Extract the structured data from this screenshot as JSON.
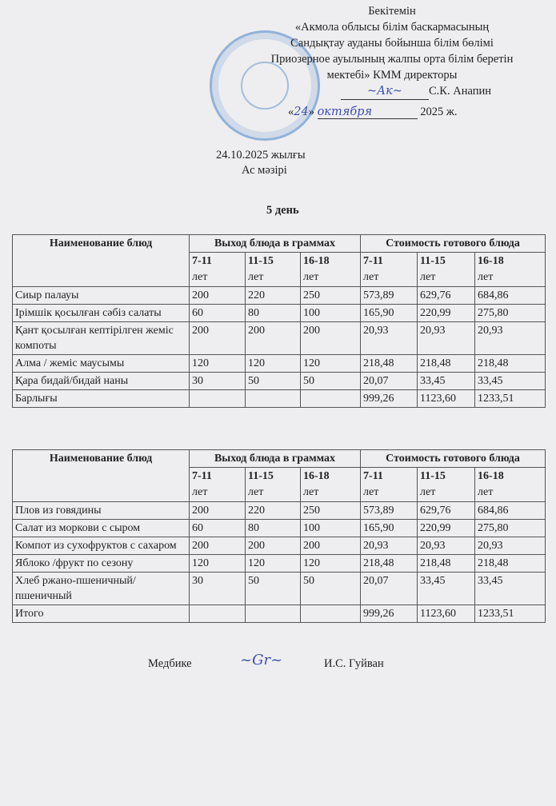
{
  "approval": {
    "lines": [
      "Бекітемін",
      "«Акмола облысы білім баскармасының",
      "Сандықтау ауданы бойынша білім бөлімі",
      "Приозерное ауылының жалпы орта білім беретін",
      "мектебі»  КММ директоры"
    ],
    "director_name": "С.К. Анапин",
    "date_day": "24",
    "date_month": "октября",
    "date_year": "2025 ж."
  },
  "date_title": "24.10.2025 жылғы",
  "menu_title": "Ас мәзірі",
  "day_title": "5 день",
  "headers": {
    "name": "Наименование блюд",
    "yield": "Выход блюда в граммах",
    "cost": "Стоимость готового блюда",
    "ages": [
      "7-11",
      "11-15",
      "16-18",
      "7-11",
      "11-15",
      "16-18"
    ],
    "unit": "лет"
  },
  "table_kz": [
    {
      "name": "Сиыр палауы",
      "values": [
        "200",
        "220",
        "250",
        "573,89",
        "629,76",
        "684,86"
      ]
    },
    {
      "name": "Ірімшік қосылған сәбіз салаты",
      "values": [
        "60",
        "80",
        "100",
        "165,90",
        "220,99",
        "275,80"
      ]
    },
    {
      "name": "Қант қосылған кептірілген жеміс компоты",
      "values": [
        "200",
        "200",
        "200",
        "20,93",
        "20,93",
        "20,93"
      ]
    },
    {
      "name": "Алма / жеміс маусымы",
      "values": [
        "120",
        "120",
        "120",
        "218,48",
        "218,48",
        "218,48"
      ]
    },
    {
      "name": "Қара бидай/бидай наны",
      "values": [
        "30",
        "50",
        "50",
        "20,07",
        "33,45",
        "33,45"
      ]
    },
    {
      "name": "Барлығы",
      "values": [
        "",
        "",
        "",
        "999,26",
        "1123,60",
        "1233,51"
      ]
    }
  ],
  "table_ru": [
    {
      "name": "Плов из говядины",
      "values": [
        "200",
        "220",
        "250",
        "573,89",
        "629,76",
        "684,86"
      ]
    },
    {
      "name": "Салат из моркови с сыром",
      "values": [
        "60",
        "80",
        "100",
        "165,90",
        "220,99",
        "275,80"
      ]
    },
    {
      "name": "Компот из сухофруктов с сахаром",
      "values": [
        "200",
        "200",
        "200",
        "20,93",
        "20,93",
        "20,93"
      ]
    },
    {
      "name": "Яблоко /фрукт по сезону",
      "values": [
        "120",
        "120",
        "120",
        "218,48",
        "218,48",
        "218,48"
      ]
    },
    {
      "name": "Хлеб ржано-пшеничный/пшеничный",
      "values": [
        "30",
        "50",
        "50",
        "20,07",
        "33,45",
        "33,45"
      ]
    },
    {
      "name": "Итого",
      "values": [
        "",
        "",
        "",
        "999,26",
        "1123,60",
        "1233,51"
      ]
    }
  ],
  "footer": {
    "role": "Медбике",
    "name": "И.С. Гуйван"
  }
}
